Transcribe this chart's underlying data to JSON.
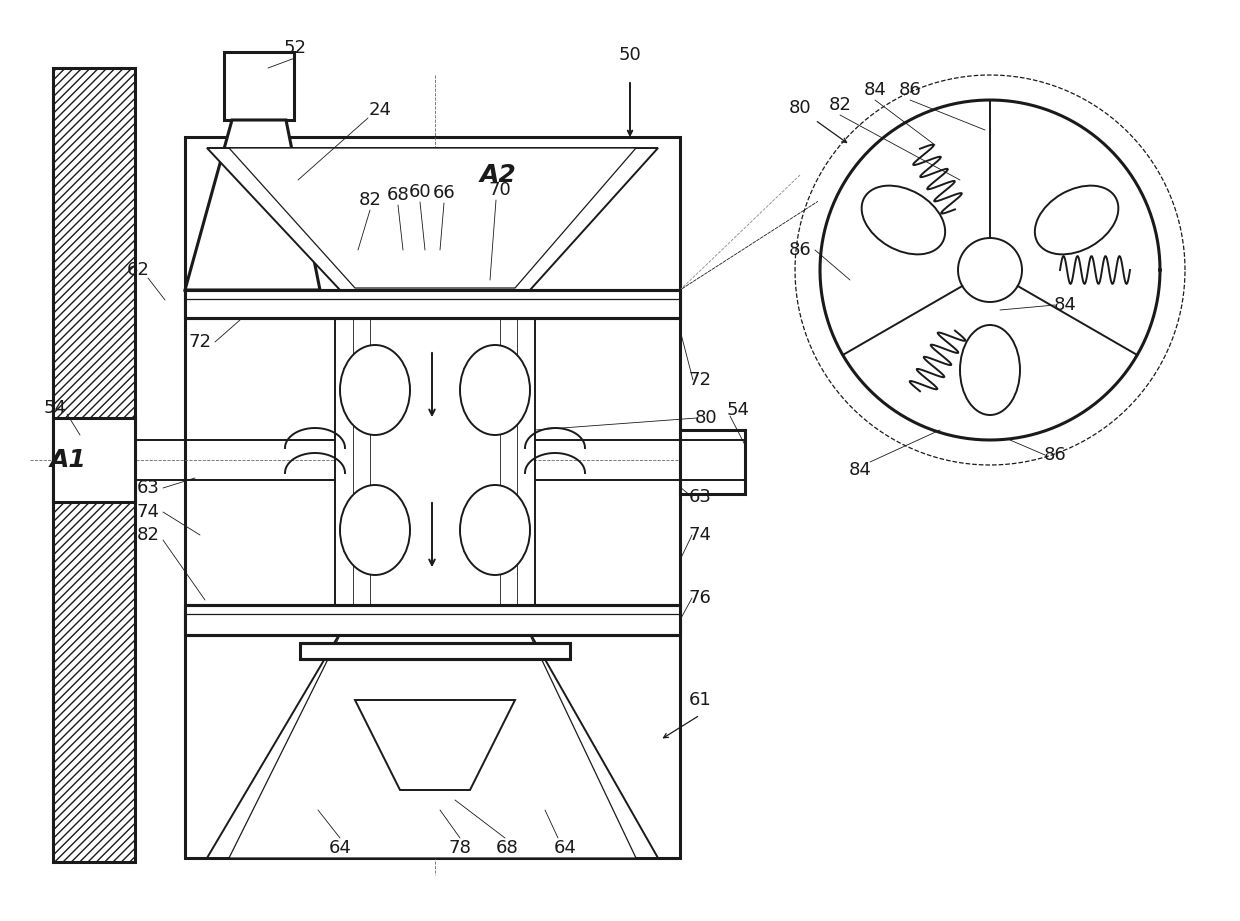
{
  "bg_color": "#ffffff",
  "line_color": "#1a1a1a",
  "fig_width": 12.4,
  "fig_height": 9.21,
  "lw_thick": 2.2,
  "lw_med": 1.4,
  "lw_thin": 0.9,
  "lw_hair": 0.6,
  "label_fs": 13
}
